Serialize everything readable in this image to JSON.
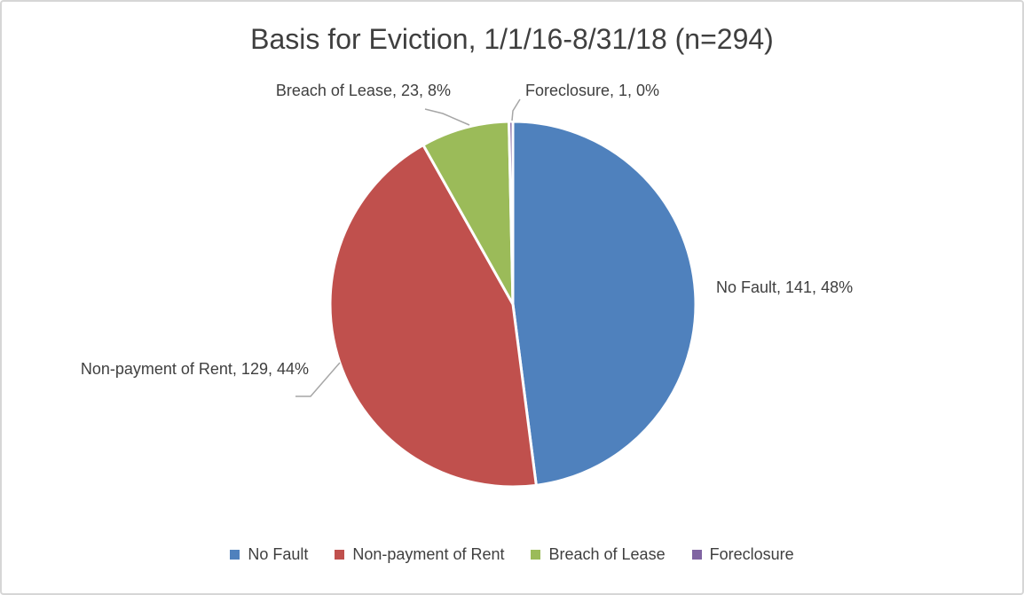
{
  "title": "Basis for Eviction, 1/1/16-8/31/18 (n=294)",
  "chart_data": {
    "type": "pie",
    "title": "Basis for Eviction, 1/1/16-8/31/18 (n=294)",
    "total": 294,
    "categories": [
      "No Fault",
      "Non-payment of Rent",
      "Breach of Lease",
      "Foreclosure"
    ],
    "values": [
      141,
      129,
      23,
      1
    ],
    "percent_labels": [
      "48%",
      "44%",
      "8%",
      "0%"
    ],
    "colors": [
      "#4F81BD",
      "#C0504D",
      "#9BBB59",
      "#8064A2"
    ],
    "data_labels": [
      "No Fault, 141, 48%",
      "Non-payment of Rent, 129, 44%",
      "Breach of Lease, 23, 8%",
      "Foreclosure, 1, 0%"
    ],
    "start_at_top": true,
    "clockwise": true,
    "legend_position": "bottom",
    "slice_border_color": "#FFFFFF",
    "leader_line_color": "#A6A6A6",
    "text_color": "#3F3F3F"
  },
  "legend": {
    "items": [
      {
        "label": "No Fault",
        "color": "#4F81BD"
      },
      {
        "label": "Non-payment of Rent",
        "color": "#C0504D"
      },
      {
        "label": "Breach of Lease",
        "color": "#9BBB59"
      },
      {
        "label": "Foreclosure",
        "color": "#8064A2"
      }
    ]
  }
}
